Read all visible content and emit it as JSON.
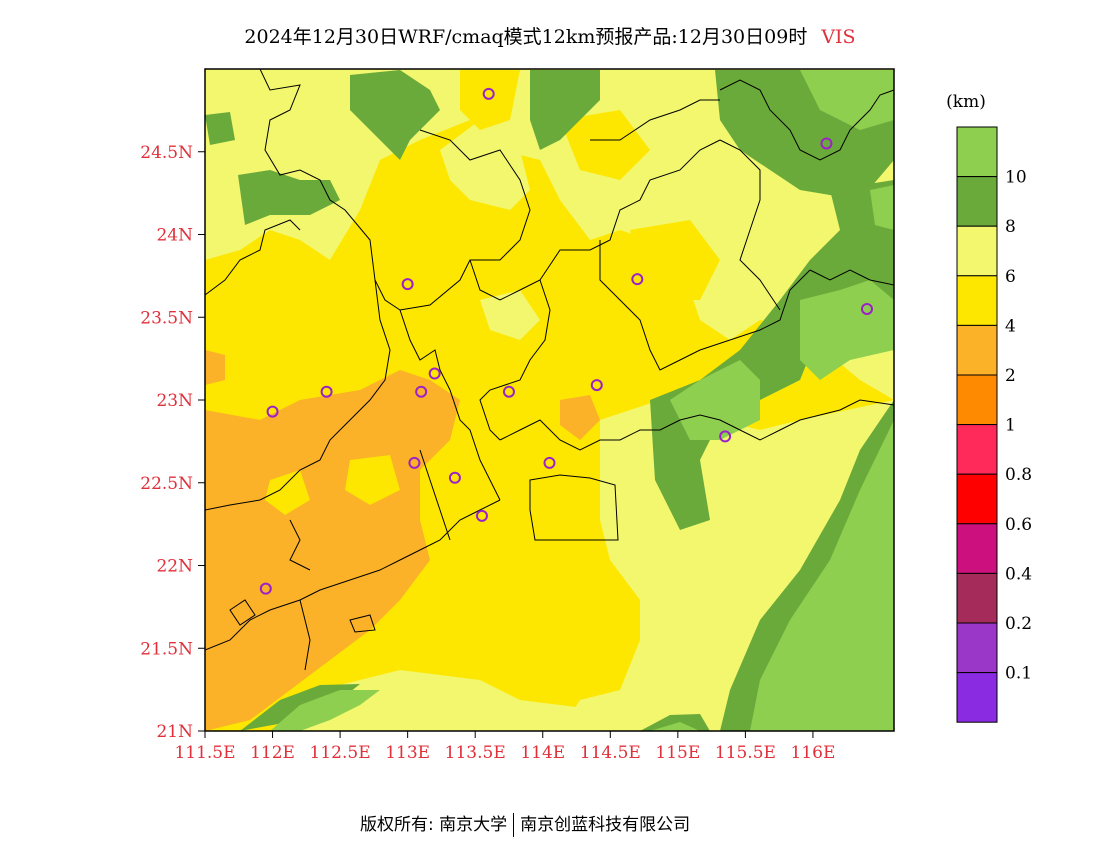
{
  "title": {
    "main": "2024年12月30日WRF/cmaq模式12km预报产品:12月30日09时",
    "variable": "VIS"
  },
  "colorbar": {
    "unit": "(km)",
    "colors_top_to_bottom": [
      "#8fcf4f",
      "#6aaa3a",
      "#f2f76e",
      "#fde700",
      "#fbb128",
      "#fd8a00",
      "#ff2a5a",
      "#ff0000",
      "#cc117f",
      "#a52b5a",
      "#9a37c9",
      "#8a2be2"
    ],
    "tick_labels_top_to_bottom": [
      "10",
      "8",
      "6",
      "4",
      "2",
      "1",
      "0.8",
      "0.6",
      "0.4",
      "0.2",
      "0.1"
    ]
  },
  "axes": {
    "lat_ticks": [
      "24.5N",
      "24N",
      "23.5N",
      "23N",
      "22.5N",
      "22N",
      "21.5N",
      "21N"
    ],
    "lon_ticks": [
      "111.5E",
      "112E",
      "112.5E",
      "113E",
      "113.5E",
      "114E",
      "114.5E",
      "115E",
      "115.5E",
      "116E"
    ],
    "tick_color": "#e0303a"
  },
  "stations": [
    {
      "lon": 113.6,
      "lat": 24.85
    },
    {
      "lon": 116.1,
      "lat": 24.55
    },
    {
      "lon": 113.0,
      "lat": 23.7
    },
    {
      "lon": 114.7,
      "lat": 23.73
    },
    {
      "lon": 116.4,
      "lat": 23.55
    },
    {
      "lon": 113.2,
      "lat": 23.16
    },
    {
      "lon": 112.4,
      "lat": 23.05
    },
    {
      "lon": 113.1,
      "lat": 23.05
    },
    {
      "lon": 113.75,
      "lat": 23.05
    },
    {
      "lon": 114.4,
      "lat": 23.09
    },
    {
      "lon": 112.0,
      "lat": 22.93
    },
    {
      "lon": 115.35,
      "lat": 22.78
    },
    {
      "lon": 113.05,
      "lat": 22.62
    },
    {
      "lon": 113.35,
      "lat": 22.53
    },
    {
      "lon": 114.05,
      "lat": 22.62
    },
    {
      "lon": 113.55,
      "lat": 22.3
    },
    {
      "lon": 111.95,
      "lat": 21.86
    }
  ],
  "footer": {
    "left": "版权所有: 南京大学",
    "right": "南京创蓝科技有限公司"
  }
}
